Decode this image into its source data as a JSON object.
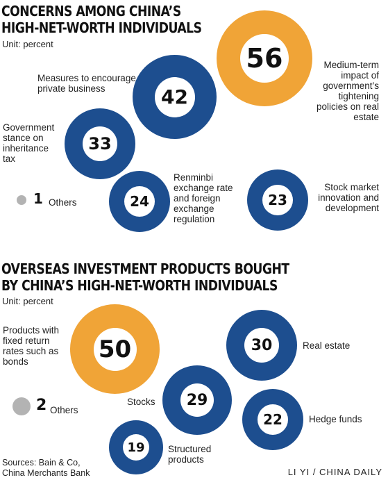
{
  "colors": {
    "blue": "#1d4e8f",
    "orange": "#f0a437",
    "gray": "#b3b3b3"
  },
  "chart_data": [
    {
      "type": "bubble",
      "title": "CONCERNS AMONG CHINA'S HIGH-NET-WORTH INDIVIDUALS",
      "title_lines": [
        "CONCERNS AMONG CHINA’S",
        "HIGH-NET-WORTH INDIVIDUALS"
      ],
      "unit": "Unit: percent",
      "items": [
        {
          "label": "Medium-term impact of government's tightening policies on real estate",
          "label_lines": [
            "Medium-term",
            "impact of",
            "government’s",
            "tightening",
            "policies on real estate"
          ],
          "value": 56,
          "display": "56",
          "color": "orange"
        },
        {
          "label": "Measures to encourage private business",
          "label_lines": [
            "Measures to encourage",
            "private business"
          ],
          "value": 42,
          "display": "42",
          "color": "blue"
        },
        {
          "label": "Government stance on inheritance tax",
          "label_lines": [
            "Government",
            "stance on",
            "inheritance",
            "tax"
          ],
          "value": 33,
          "display": "33",
          "color": "blue"
        },
        {
          "label": "Renminbi exchange rate and foreign exchange regulation",
          "label_lines": [
            "Renminbi",
            "exchange rate",
            "and foreign",
            "exchange",
            "regulation"
          ],
          "value": 24,
          "display": "24",
          "color": "blue"
        },
        {
          "label": "Stock market innovation and development",
          "label_lines": [
            "Stock market",
            "innovation and",
            "development"
          ],
          "value": 23,
          "display": "23",
          "color": "blue"
        }
      ],
      "others": {
        "label": "Others",
        "value": 1,
        "display": "1"
      }
    },
    {
      "type": "bubble",
      "title": "OVERSEAS INVESTMENT PRODUCTS BOUGHT BY CHINA'S HIGH-NET-WORTH INDIVIDUALS",
      "title_lines": [
        "OVERSEAS INVESTMENT PRODUCTS BOUGHT",
        "BY CHINA’S HIGH-NET-WORTH INDIVIDUALS"
      ],
      "unit": "Unit: percent",
      "items": [
        {
          "label": "Products with fixed return rates such as bonds",
          "label_lines": [
            "Products with",
            "fixed return",
            "rates such as",
            "bonds"
          ],
          "value": 50,
          "display": "50",
          "color": "orange"
        },
        {
          "label": "Real estate",
          "label_lines": [
            "Real estate"
          ],
          "value": 30,
          "display": "30",
          "color": "blue"
        },
        {
          "label": "Stocks",
          "label_lines": [
            "Stocks"
          ],
          "value": 29,
          "display": "29",
          "color": "blue"
        },
        {
          "label": "Hedge funds",
          "label_lines": [
            "Hedge funds"
          ],
          "value": 22,
          "display": "22",
          "color": "blue"
        },
        {
          "label": "Structured products",
          "label_lines": [
            "Structured",
            "products"
          ],
          "value": 19,
          "display": "19",
          "color": "blue"
        }
      ],
      "others": {
        "label": "Others",
        "value": 2,
        "display": "2"
      }
    }
  ],
  "footer": {
    "sources": "Sources: Bain & Co, China Merchants Bank",
    "source_lines": [
      "Sources: Bain & Co,",
      "China Merchants Bank"
    ],
    "credit": "LI YI / CHINA DAILY"
  }
}
